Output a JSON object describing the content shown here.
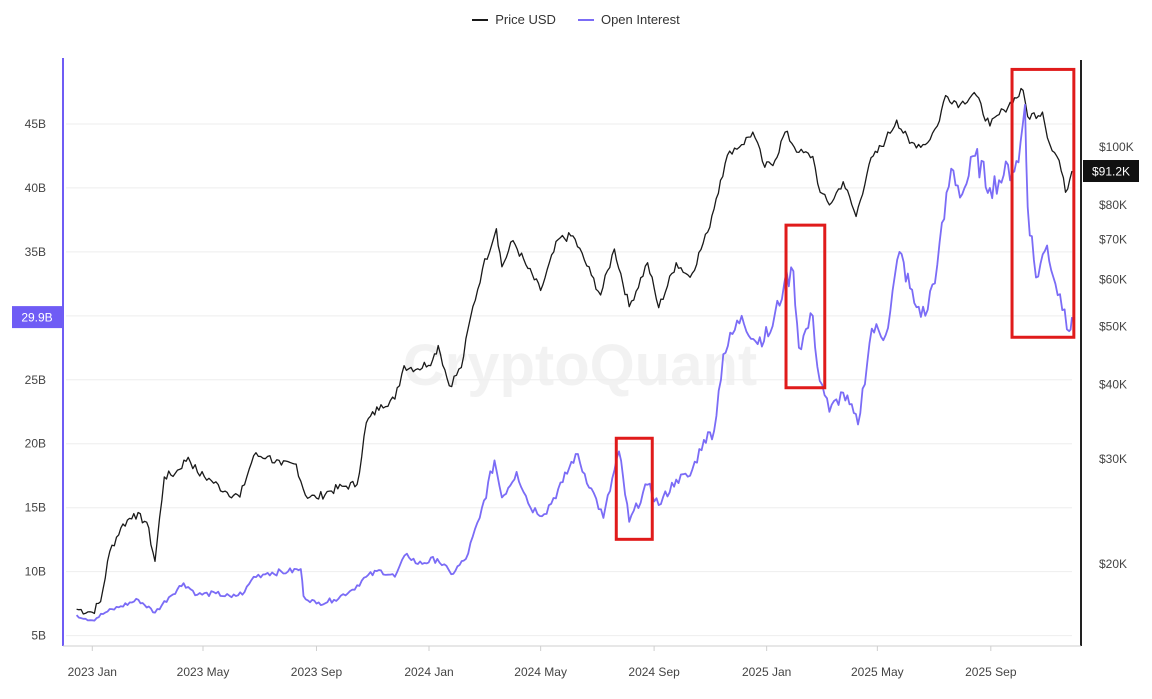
{
  "watermark": "CryptoQuant",
  "colors": {
    "price": "#1a1a1a",
    "open_interest": "#7b6cf6",
    "left_axis": "#6f5cf5",
    "highlight_box": "#e01b1b",
    "grid": "#eeeeee",
    "price_badge_bg": "#111111",
    "oi_badge_bg": "#6f5cf5"
  },
  "chart_data": {
    "type": "line",
    "legend": [
      "Price USD",
      "Open Interest"
    ],
    "legend_placement": "top-center",
    "grid": true,
    "x_axis": {
      "type": "date",
      "range": [
        "2022-12-10",
        "2025-11-28"
      ],
      "ticks": [
        {
          "date": "2023-01-01",
          "label": "2023 Jan"
        },
        {
          "date": "2023-05-01",
          "label": "2023 May"
        },
        {
          "date": "2023-09-01",
          "label": "2023 Sep"
        },
        {
          "date": "2024-01-01",
          "label": "2024 Jan"
        },
        {
          "date": "2024-05-01",
          "label": "2024 May"
        },
        {
          "date": "2024-09-01",
          "label": "2024 Sep"
        },
        {
          "date": "2025-01-01",
          "label": "2025 Jan"
        },
        {
          "date": "2025-05-01",
          "label": "2025 May"
        },
        {
          "date": "2025-09-01",
          "label": "2025 Sep"
        }
      ]
    },
    "y_left": {
      "series": "Open Interest",
      "unit": "USD",
      "scale": "linear",
      "range": [
        4.5,
        50
      ],
      "ticks": [
        {
          "value": 5,
          "label": "5B"
        },
        {
          "value": 10,
          "label": "10B"
        },
        {
          "value": 15,
          "label": "15B"
        },
        {
          "value": 20,
          "label": "20B"
        },
        {
          "value": 25,
          "label": "25B"
        },
        {
          "value": 30,
          "label": ""
        },
        {
          "value": 35,
          "label": "35B"
        },
        {
          "value": 40,
          "label": "40B"
        },
        {
          "value": 45,
          "label": "45B"
        }
      ],
      "current_label": {
        "value": 29.9,
        "label": "29.9B"
      }
    },
    "y_right": {
      "series": "Price USD",
      "unit": "USD",
      "scale": "log",
      "range": [
        14800,
        140000
      ],
      "ticks": [
        {
          "value": 20000,
          "label": "$20K"
        },
        {
          "value": 30000,
          "label": "$30K"
        },
        {
          "value": 40000,
          "label": "$40K"
        },
        {
          "value": 50000,
          "label": "$50K"
        },
        {
          "value": 60000,
          "label": "$60K"
        },
        {
          "value": 70000,
          "label": "$70K"
        },
        {
          "value": 80000,
          "label": "$80K"
        },
        {
          "value": 100000,
          "label": "$100K"
        }
      ],
      "current_label": {
        "value": 91200,
        "label": "$91.2K"
      }
    },
    "series": [
      {
        "name": "Price USD",
        "axis": "right",
        "points": [
          [
            "2022-12-15",
            16800
          ],
          [
            "2023-01-01",
            16600
          ],
          [
            "2023-01-10",
            17300
          ],
          [
            "2023-01-20",
            21000
          ],
          [
            "2023-02-01",
            23000
          ],
          [
            "2023-02-15",
            24300
          ],
          [
            "2023-03-01",
            23500
          ],
          [
            "2023-03-10",
            20200
          ],
          [
            "2023-03-20",
            28000
          ],
          [
            "2023-04-01",
            28400
          ],
          [
            "2023-04-15",
            30200
          ],
          [
            "2023-04-25",
            28500
          ],
          [
            "2023-05-10",
            27600
          ],
          [
            "2023-05-25",
            26500
          ],
          [
            "2023-06-10",
            25900
          ],
          [
            "2023-06-25",
            30400
          ],
          [
            "2023-07-10",
            30300
          ],
          [
            "2023-07-25",
            29300
          ],
          [
            "2023-08-10",
            29400
          ],
          [
            "2023-08-20",
            26100
          ],
          [
            "2023-09-01",
            25800
          ],
          [
            "2023-09-15",
            26500
          ],
          [
            "2023-10-01",
            27000
          ],
          [
            "2023-10-15",
            27200
          ],
          [
            "2023-10-25",
            34500
          ],
          [
            "2023-11-10",
            37000
          ],
          [
            "2023-11-25",
            37800
          ],
          [
            "2023-12-05",
            43000
          ],
          [
            "2023-12-20",
            42500
          ],
          [
            "2024-01-05",
            44000
          ],
          [
            "2024-01-11",
            46500
          ],
          [
            "2024-01-23",
            39800
          ],
          [
            "2024-02-05",
            42700
          ],
          [
            "2024-02-15",
            51800
          ],
          [
            "2024-02-28",
            62500
          ],
          [
            "2024-03-14",
            73000
          ],
          [
            "2024-03-20",
            63000
          ],
          [
            "2024-04-01",
            69700
          ],
          [
            "2024-04-15",
            63500
          ],
          [
            "2024-05-01",
            57500
          ],
          [
            "2024-05-20",
            70000
          ],
          [
            "2024-06-05",
            71000
          ],
          [
            "2024-06-25",
            61000
          ],
          [
            "2024-07-05",
            56500
          ],
          [
            "2024-07-20",
            67500
          ],
          [
            "2024-08-05",
            54000
          ],
          [
            "2024-08-25",
            64000
          ],
          [
            "2024-09-06",
            53800
          ],
          [
            "2024-09-25",
            64000
          ],
          [
            "2024-10-10",
            60500
          ],
          [
            "2024-10-29",
            72000
          ],
          [
            "2024-11-12",
            88000
          ],
          [
            "2024-11-22",
            98500
          ],
          [
            "2024-12-05",
            101000
          ],
          [
            "2024-12-17",
            106000
          ],
          [
            "2024-12-30",
            92500
          ],
          [
            "2025-01-10",
            95000
          ],
          [
            "2025-01-21",
            106000
          ],
          [
            "2025-02-05",
            98000
          ],
          [
            "2025-02-20",
            96500
          ],
          [
            "2025-02-28",
            84000
          ],
          [
            "2025-03-10",
            80000
          ],
          [
            "2025-03-25",
            87500
          ],
          [
            "2025-04-08",
            76500
          ],
          [
            "2025-04-22",
            93500
          ],
          [
            "2025-05-10",
            103000
          ],
          [
            "2025-05-22",
            111000
          ],
          [
            "2025-06-05",
            101500
          ],
          [
            "2025-06-22",
            101000
          ],
          [
            "2025-07-05",
            108500
          ],
          [
            "2025-07-14",
            122000
          ],
          [
            "2025-07-30",
            118000
          ],
          [
            "2025-08-14",
            123500
          ],
          [
            "2025-08-31",
            108500
          ],
          [
            "2025-09-15",
            115500
          ],
          [
            "2025-10-06",
            124500
          ],
          [
            "2025-10-11",
            112500
          ],
          [
            "2025-10-27",
            114500
          ],
          [
            "2025-11-04",
            101000
          ],
          [
            "2025-11-14",
            95000
          ],
          [
            "2025-11-21",
            84000
          ],
          [
            "2025-11-28",
            91200
          ]
        ]
      },
      {
        "name": "Open Interest",
        "axis": "left",
        "points": [
          [
            "2022-12-15",
            6.6
          ],
          [
            "2023-01-01",
            6.2
          ],
          [
            "2023-01-15",
            6.8
          ],
          [
            "2023-02-01",
            7.3
          ],
          [
            "2023-02-20",
            7.8
          ],
          [
            "2023-03-10",
            6.8
          ],
          [
            "2023-03-25",
            8.0
          ],
          [
            "2023-04-10",
            9.1
          ],
          [
            "2023-04-25",
            8.2
          ],
          [
            "2023-05-15",
            8.3
          ],
          [
            "2023-06-01",
            8.0
          ],
          [
            "2023-06-15",
            8.4
          ],
          [
            "2023-06-25",
            9.6
          ],
          [
            "2023-07-10",
            9.9
          ],
          [
            "2023-08-01",
            10.0
          ],
          [
            "2023-08-15",
            10.2
          ],
          [
            "2023-08-18",
            8.1
          ],
          [
            "2023-09-01",
            7.5
          ],
          [
            "2023-09-20",
            7.8
          ],
          [
            "2023-10-10",
            8.6
          ],
          [
            "2023-10-25",
            9.6
          ],
          [
            "2023-11-10",
            10.1
          ],
          [
            "2023-11-25",
            9.6
          ],
          [
            "2023-12-08",
            11.4
          ],
          [
            "2023-12-20",
            10.6
          ],
          [
            "2024-01-10",
            11.0
          ],
          [
            "2024-01-25",
            9.8
          ],
          [
            "2024-02-10",
            11.0
          ],
          [
            "2024-02-25",
            14.2
          ],
          [
            "2024-03-12",
            18.7
          ],
          [
            "2024-03-20",
            15.8
          ],
          [
            "2024-04-05",
            17.8
          ],
          [
            "2024-04-20",
            15.0
          ],
          [
            "2024-05-05",
            14.5
          ],
          [
            "2024-05-25",
            17.0
          ],
          [
            "2024-06-08",
            19.2
          ],
          [
            "2024-06-25",
            16.5
          ],
          [
            "2024-07-08",
            14.2
          ],
          [
            "2024-07-25",
            19.4
          ],
          [
            "2024-08-05",
            13.9
          ],
          [
            "2024-08-25",
            16.8
          ],
          [
            "2024-09-06",
            15.2
          ],
          [
            "2024-09-25",
            17.2
          ],
          [
            "2024-10-10",
            17.5
          ],
          [
            "2024-10-25",
            20.3
          ],
          [
            "2024-11-05",
            21.0
          ],
          [
            "2024-11-15",
            27.0
          ],
          [
            "2024-12-05",
            30.0
          ],
          [
            "2024-12-20",
            28.0
          ],
          [
            "2025-01-05",
            28.7
          ],
          [
            "2025-01-20",
            32.5
          ],
          [
            "2025-01-30",
            33.5
          ],
          [
            "2025-02-05",
            27.5
          ],
          [
            "2025-02-20",
            30.0
          ],
          [
            "2025-02-25",
            26.0
          ],
          [
            "2025-03-10",
            22.5
          ],
          [
            "2025-03-25",
            24.0
          ],
          [
            "2025-04-10",
            21.5
          ],
          [
            "2025-04-25",
            29.0
          ],
          [
            "2025-05-10",
            28.5
          ],
          [
            "2025-05-25",
            35.0
          ],
          [
            "2025-06-10",
            31.0
          ],
          [
            "2025-06-22",
            30.0
          ],
          [
            "2025-07-05",
            34.0
          ],
          [
            "2025-07-20",
            41.5
          ],
          [
            "2025-08-01",
            39.5
          ],
          [
            "2025-08-15",
            42.5
          ],
          [
            "2025-08-31",
            40.0
          ],
          [
            "2025-09-15",
            41.0
          ],
          [
            "2025-10-01",
            42.0
          ],
          [
            "2025-10-08",
            46.5
          ],
          [
            "2025-10-11",
            38.5
          ],
          [
            "2025-10-20",
            33.0
          ],
          [
            "2025-11-01",
            35.5
          ],
          [
            "2025-11-10",
            32.5
          ],
          [
            "2025-11-20",
            30.5
          ],
          [
            "2025-11-25",
            28.8
          ],
          [
            "2025-11-28",
            29.9
          ]
        ]
      }
    ],
    "annotations": [
      {
        "type": "highlight-box",
        "x_range": [
          "2024-07-22",
          "2024-08-30"
        ],
        "y_range_right": [
          22000,
          32500
        ]
      },
      {
        "type": "highlight-box",
        "x_range": [
          "2025-01-22",
          "2025-03-05"
        ],
        "y_range_right": [
          39500,
          74000
        ]
      },
      {
        "type": "highlight-box",
        "x_range": [
          "2025-09-24",
          "2025-11-30"
        ],
        "y_range_right": [
          48000,
          135000
        ]
      }
    ]
  }
}
